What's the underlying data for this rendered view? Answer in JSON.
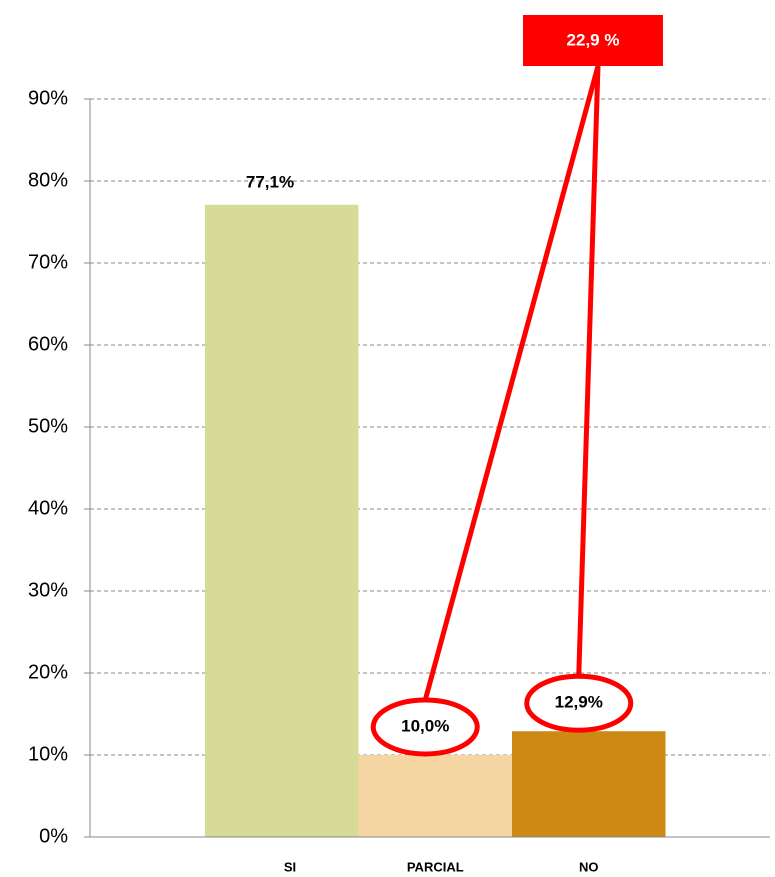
{
  "chart_data": {
    "type": "bar",
    "categories": [
      "SI",
      "PARCIAL",
      "NO"
    ],
    "values": [
      77.1,
      10.0,
      12.9
    ],
    "value_labels": [
      "77,1%",
      "10,0%",
      "12,9%"
    ],
    "colors": [
      "#d6dc96",
      "#f5d6a3",
      "#cc8a14"
    ],
    "ylim": [
      0,
      90
    ],
    "yticks": [
      {
        "value": 0,
        "label": "0%"
      },
      {
        "value": 10,
        "label": "10%"
      },
      {
        "value": 20,
        "label": "20%"
      },
      {
        "value": 30,
        "label": "30%"
      },
      {
        "value": 40,
        "label": "40%"
      },
      {
        "value": 50,
        "label": "50%"
      },
      {
        "value": 60,
        "label": "60%"
      },
      {
        "value": 70,
        "label": "70%"
      },
      {
        "value": 80,
        "label": "80%"
      },
      {
        "value": 90,
        "label": "90%"
      }
    ],
    "grid": true,
    "annotation": "22,9 %"
  }
}
